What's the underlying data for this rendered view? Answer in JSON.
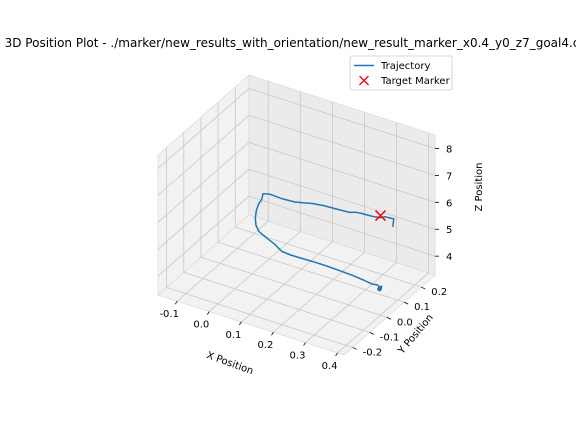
{
  "chart_data": {
    "type": "line",
    "projection": "3d",
    "title": "3D Position Plot - ./marker/new_results_with_orientation/new_result_marker_x0.4_y0_z7_goal4.c",
    "xlabel": "X Position",
    "ylabel": "Y Position",
    "zlabel": "Z Position",
    "xlim": [
      -0.16,
      0.42
    ],
    "ylim": [
      -0.25,
      0.28
    ],
    "zlim": [
      3.3,
      8.5
    ],
    "x_ticks": [
      "-0.1",
      "0.0",
      "0.1",
      "0.2",
      "0.3",
      "0.4"
    ],
    "y_ticks": [
      "-0.2",
      "-0.1",
      "0.0",
      "0.1",
      "0.2"
    ],
    "z_ticks": [
      "4",
      "5",
      "6",
      "7",
      "8"
    ],
    "grid": true,
    "legend_position": "top-right",
    "legend": [
      {
        "label": "Trajectory",
        "color": "#1f77b4",
        "marker": "line"
      },
      {
        "label": "Target Marker",
        "color": "#ff0000",
        "marker": "x"
      }
    ],
    "series": [
      {
        "name": "Trajectory",
        "color": "#1f77b4",
        "points": [
          [
            0.403,
            0.0,
            4.3
          ],
          [
            0.401,
            0.003,
            4.28
          ],
          [
            0.397,
            0.012,
            4.3
          ],
          [
            0.392,
            0.005,
            4.3
          ],
          [
            0.385,
            0.01,
            4.31
          ],
          [
            0.37,
            0.007,
            4.3
          ],
          [
            0.345,
            0.01,
            4.32
          ],
          [
            0.305,
            0.015,
            4.33
          ],
          [
            0.258,
            0.018,
            4.33
          ],
          [
            0.212,
            0.02,
            4.33
          ],
          [
            0.185,
            0.021,
            4.32
          ],
          [
            0.15,
            0.021,
            4.31
          ],
          [
            0.108,
            0.022,
            4.29
          ],
          [
            0.08,
            0.024,
            4.3
          ],
          [
            0.07,
            0.025,
            4.36
          ],
          [
            0.058,
            0.026,
            4.46
          ],
          [
            0.03,
            0.027,
            4.6
          ],
          [
            0.006,
            0.027,
            4.75
          ],
          [
            -0.003,
            0.027,
            4.95
          ],
          [
            -0.005,
            0.027,
            5.2
          ],
          [
            -0.002,
            0.028,
            5.5
          ],
          [
            0.005,
            0.028,
            5.75
          ],
          [
            0.014,
            0.029,
            5.95
          ],
          [
            0.018,
            0.029,
            6.18
          ],
          [
            0.038,
            0.03,
            6.24
          ],
          [
            0.078,
            0.031,
            6.21
          ],
          [
            0.116,
            0.031,
            6.24
          ],
          [
            0.145,
            0.032,
            6.31
          ],
          [
            0.17,
            0.033,
            6.38
          ],
          [
            0.205,
            0.034,
            6.43
          ],
          [
            0.25,
            0.034,
            6.46
          ],
          [
            0.285,
            0.035,
            6.48
          ],
          [
            0.303,
            0.036,
            6.55
          ],
          [
            0.324,
            0.036,
            6.58
          ],
          [
            0.355,
            0.037,
            6.59
          ],
          [
            0.38,
            0.038,
            6.63
          ],
          [
            0.393,
            0.038,
            6.72
          ],
          [
            0.415,
            0.039,
            6.73
          ],
          [
            0.42,
            0.04,
            6.74
          ],
          [
            0.417,
            0.04,
            6.42
          ]
        ]
      },
      {
        "name": "Target Marker",
        "color": "#ff0000",
        "marker": "x",
        "points": [
          [
            0.4,
            0.0,
            7.0
          ]
        ]
      }
    ]
  }
}
